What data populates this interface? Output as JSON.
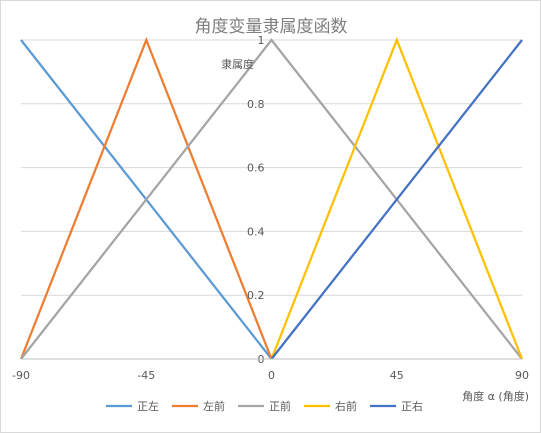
{
  "chart_data": {
    "type": "line",
    "title": "角度变量隶属度函数",
    "xlabel": "角度 α (角度)",
    "ylabel": "隶属度",
    "xlim": [
      -90,
      90
    ],
    "ylim": [
      0,
      1
    ],
    "x_ticks": [
      "-90",
      "-45",
      "0",
      "45",
      "90"
    ],
    "y_ticks": [
      "0",
      "0.2",
      "0.4",
      "0.6",
      "0.8",
      "1"
    ],
    "grid": true,
    "legend_position": "bottom",
    "series": [
      {
        "name": "正左",
        "color": "#5B9BD5",
        "points": [
          [
            -90,
            1
          ],
          [
            0,
            0
          ]
        ]
      },
      {
        "name": "左前",
        "color": "#ED7D31",
        "points": [
          [
            -90,
            0
          ],
          [
            -45,
            1
          ],
          [
            0,
            0
          ]
        ]
      },
      {
        "name": "正前",
        "color": "#A5A5A5",
        "points": [
          [
            -90,
            0
          ],
          [
            0,
            1
          ],
          [
            90,
            0
          ]
        ]
      },
      {
        "name": "右前",
        "color": "#FFC000",
        "points": [
          [
            0,
            0
          ],
          [
            45,
            1
          ],
          [
            90,
            0
          ]
        ]
      },
      {
        "name": "正右",
        "color": "#4472C4",
        "points": [
          [
            0,
            0
          ],
          [
            90,
            1
          ]
        ]
      }
    ]
  }
}
